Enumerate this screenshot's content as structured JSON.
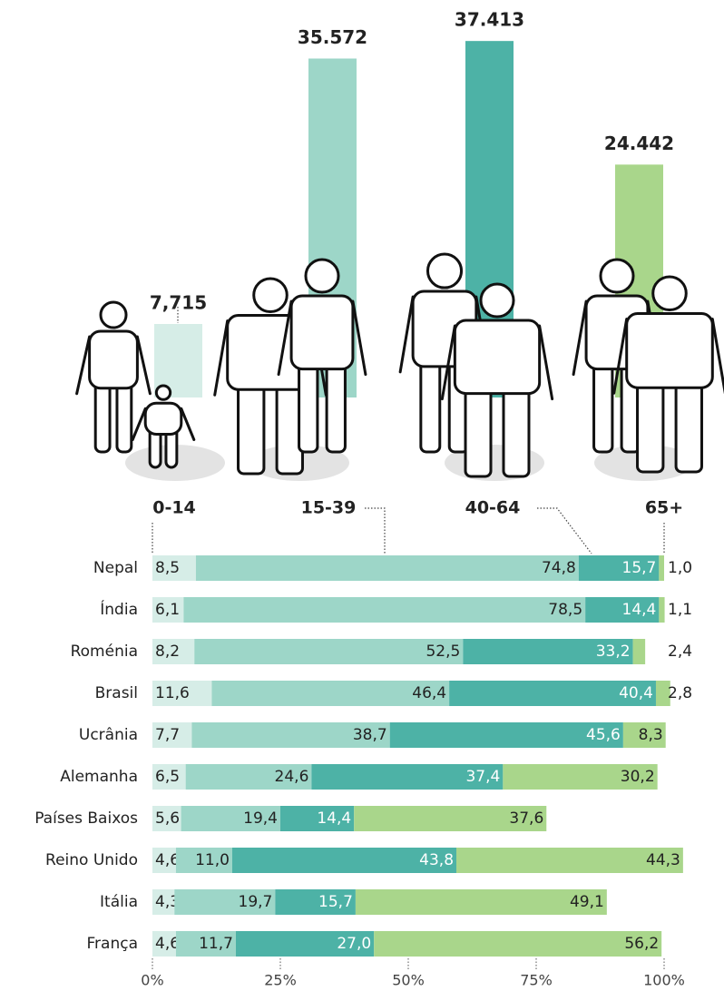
{
  "chart_data": [
    {
      "type": "bar",
      "categories": [
        "0-14",
        "15-39",
        "40-64",
        "65+"
      ],
      "values": [
        7715,
        35572,
        37413,
        24442
      ],
      "value_labels": [
        "7,715",
        "35.572",
        "37.413",
        "24.442"
      ],
      "colors": [
        "#d6ede7",
        "#9dd6c8",
        "#4db2a6",
        "#a9d68b"
      ],
      "ylim": [
        0,
        40000
      ]
    },
    {
      "type": "stacked-bar-horizontal",
      "categories": [
        "Nepal",
        "Índia",
        "Roménia",
        "Brasil",
        "Ucrânia",
        "Alemanha",
        "Países Baixos",
        "Reino Unido",
        "Itália",
        "França"
      ],
      "series": [
        {
          "color": "#d6ede7",
          "values": [
            8.5,
            6.1,
            8.2,
            11.6,
            7.7,
            6.5,
            5.6,
            4.6,
            4.3,
            4.6
          ],
          "value_labels": [
            "8,5",
            "6,1",
            "8,2",
            "11,6",
            "7,7",
            "6,5",
            "5,6",
            "4,6",
            "4,3",
            "4,6"
          ]
        },
        {
          "color": "#9dd6c8",
          "values": [
            74.8,
            78.5,
            52.5,
            46.4,
            38.7,
            24.6,
            19.4,
            11.0,
            19.7,
            11.7
          ],
          "value_labels": [
            "74,8",
            "78,5",
            "52,5",
            "46,4",
            "38,7",
            "24,6",
            "19,4",
            "11,0",
            "19,7",
            "11,7"
          ]
        },
        {
          "color": "#4db2a6",
          "values": [
            15.7,
            14.4,
            33.2,
            40.4,
            45.6,
            37.4,
            14.4,
            43.8,
            15.7,
            27.0
          ],
          "value_labels": [
            "15,7",
            "14,4",
            "33,2",
            "40,4",
            "45,6",
            "37,4",
            "14,4",
            "43,8",
            "15,7",
            "27,0"
          ]
        },
        {
          "color": "#a9d68b",
          "values": [
            1.0,
            1.1,
            2.4,
            2.8,
            8.3,
            30.2,
            37.6,
            44.3,
            49.1,
            56.2
          ],
          "value_labels": [
            "1,0",
            "1,1",
            "2,4",
            "2,8",
            "8,3",
            "30,2",
            "37,6",
            "44,3",
            "49,1",
            "56,2"
          ]
        }
      ],
      "xlim": [
        0,
        100
      ],
      "xticks": [
        {
          "value": 0,
          "label": "0%"
        },
        {
          "value": 25,
          "label": "25%"
        },
        {
          "value": 50,
          "label": "50%"
        },
        {
          "value": 75,
          "label": "75%"
        },
        {
          "value": 100,
          "label": "100%"
        }
      ]
    }
  ]
}
